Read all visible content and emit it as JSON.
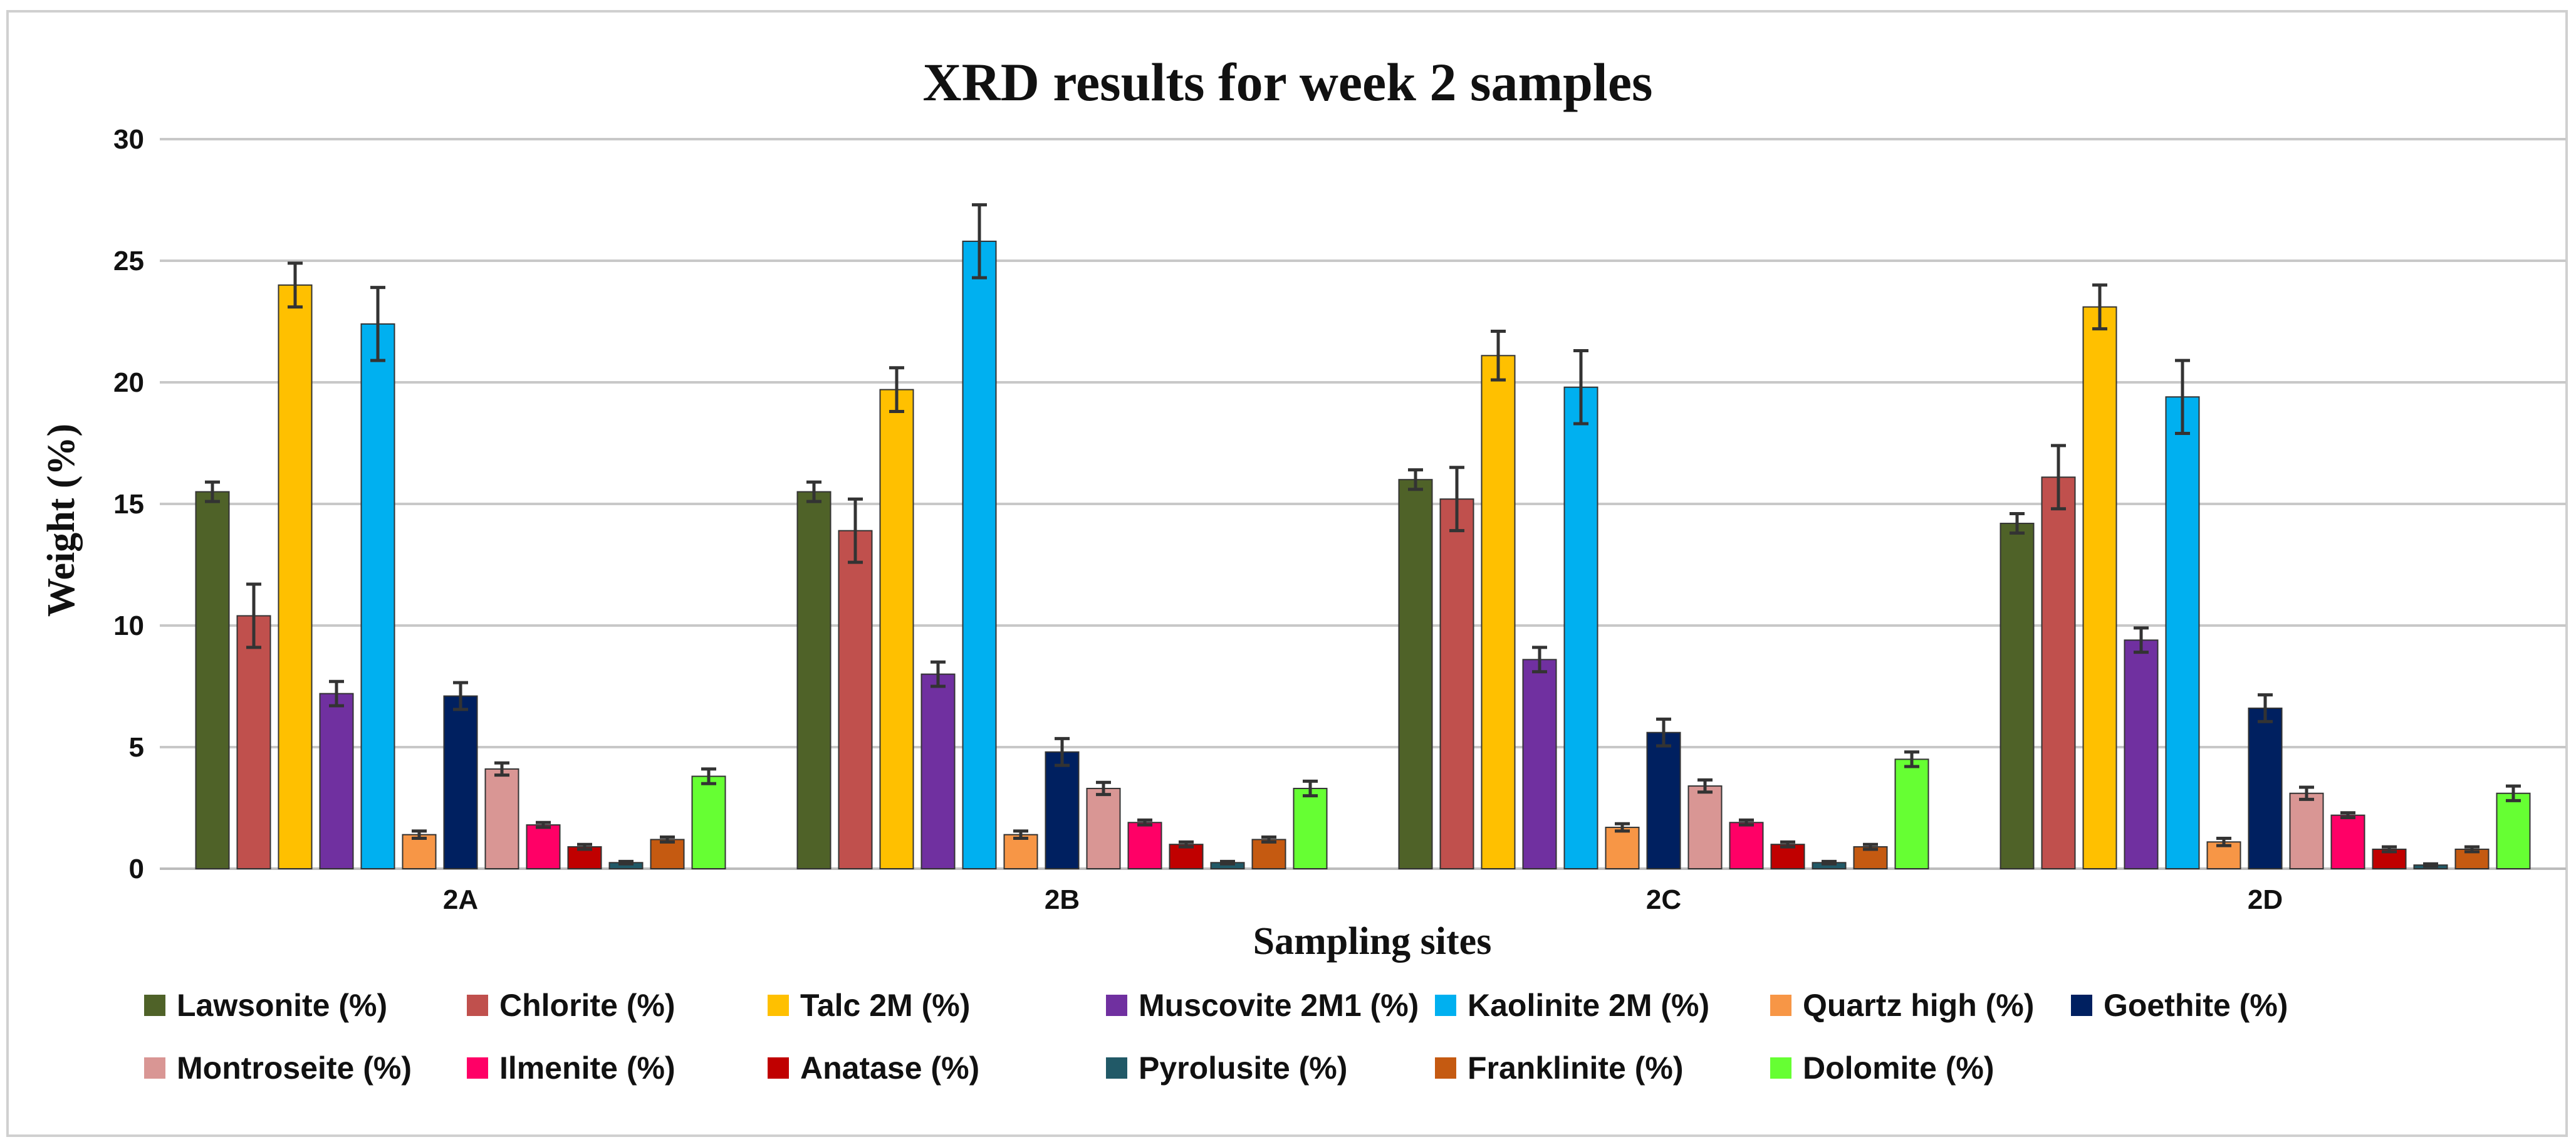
{
  "chart_data": {
    "type": "bar",
    "title": "XRD results for week 2  samples",
    "xlabel": "Sampling sites",
    "ylabel": "Weight  (%)",
    "ylim": [
      0,
      30
    ],
    "yticks": [
      0,
      5,
      10,
      15,
      20,
      25,
      30
    ],
    "grid": true,
    "legend_position": "bottom",
    "categories": [
      "2A",
      "2B",
      "2C",
      "2D"
    ],
    "series": [
      {
        "name": "Lawsonite (%)",
        "color": "#4f6228",
        "values": [
          15.5,
          15.5,
          16.0,
          14.2
        ],
        "errors": [
          0.4,
          0.4,
          0.4,
          0.4
        ]
      },
      {
        "name": "Chlorite (%)",
        "color": "#c0504d",
        "values": [
          10.4,
          13.9,
          15.2,
          16.1
        ],
        "errors": [
          1.3,
          1.3,
          1.3,
          1.3
        ]
      },
      {
        "name": "Talc 2M (%)",
        "color": "#ffc000",
        "values": [
          24.0,
          19.7,
          21.1,
          23.1
        ],
        "errors": [
          0.9,
          0.9,
          1.0,
          0.9
        ]
      },
      {
        "name": "Muscovite 2M1 (%)",
        "color": "#7030a0",
        "values": [
          7.2,
          8.0,
          8.6,
          9.4
        ],
        "errors": [
          0.5,
          0.5,
          0.5,
          0.5
        ]
      },
      {
        "name": "Kaolinite 2M (%)",
        "color": "#00b0f0",
        "values": [
          22.4,
          25.8,
          19.8,
          19.4
        ],
        "errors": [
          1.5,
          1.5,
          1.5,
          1.5
        ]
      },
      {
        "name": "Quartz high (%)",
        "color": "#f79646",
        "values": [
          1.4,
          1.4,
          1.7,
          1.1
        ],
        "errors": [
          0.15,
          0.15,
          0.15,
          0.15
        ]
      },
      {
        "name": "Goethite (%)",
        "color": "#002060",
        "values": [
          7.1,
          4.8,
          5.6,
          6.6
        ],
        "errors": [
          0.55,
          0.55,
          0.55,
          0.55
        ]
      },
      {
        "name": "Montroseite (%)",
        "color": "#d99694",
        "values": [
          4.1,
          3.3,
          3.4,
          3.1
        ],
        "errors": [
          0.25,
          0.25,
          0.25,
          0.25
        ]
      },
      {
        "name": "Ilmenite (%)",
        "color": "#ff0066",
        "values": [
          1.8,
          1.9,
          1.9,
          2.2
        ],
        "errors": [
          0.1,
          0.1,
          0.1,
          0.1
        ]
      },
      {
        "name": "Anatase (%)",
        "color": "#c00000",
        "values": [
          0.9,
          1.0,
          1.0,
          0.8
        ],
        "errors": [
          0.1,
          0.1,
          0.1,
          0.1
        ]
      },
      {
        "name": "Pyrolusite (%)",
        "color": "#215967",
        "values": [
          0.25,
          0.25,
          0.25,
          0.15
        ],
        "errors": [
          0.05,
          0.05,
          0.05,
          0.05
        ]
      },
      {
        "name": "Franklinite (%)",
        "color": "#c55a11",
        "values": [
          1.2,
          1.2,
          0.9,
          0.8
        ],
        "errors": [
          0.1,
          0.1,
          0.1,
          0.1
        ]
      },
      {
        "name": "Dolomite (%)",
        "color": "#66ff33",
        "values": [
          3.8,
          3.3,
          4.5,
          3.1
        ],
        "errors": [
          0.3,
          0.3,
          0.3,
          0.3
        ]
      }
    ]
  }
}
